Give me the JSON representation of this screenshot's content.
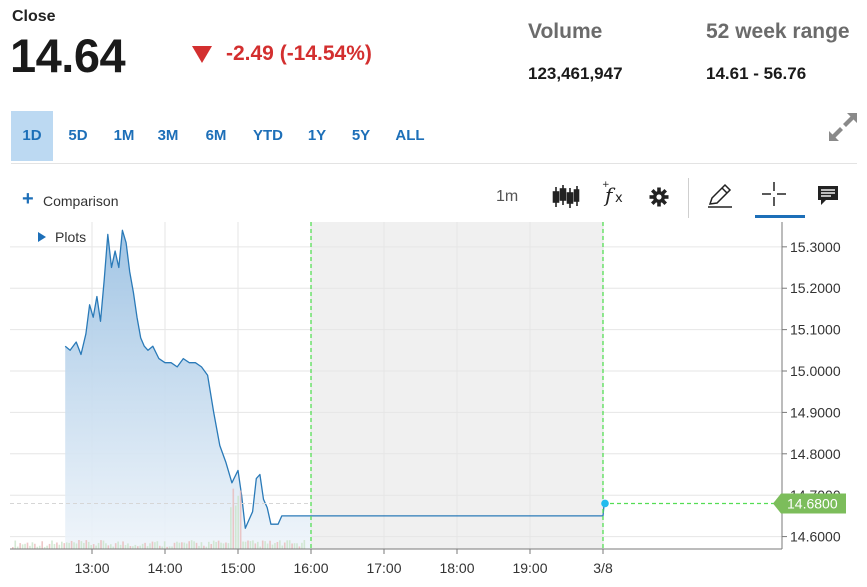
{
  "quote": {
    "close_label": "Close",
    "price": "14.64",
    "change": "-2.49 (-14.54%)",
    "volume_label": "Volume",
    "volume_value": "123,461,947",
    "range_label": "52 week range",
    "range_value": "14.61 - 56.76",
    "down_color": "#d32f2f"
  },
  "ranges": [
    {
      "label": "1D",
      "active": true
    },
    {
      "label": "5D",
      "active": false
    },
    {
      "label": "1M",
      "active": false
    },
    {
      "label": "3M",
      "active": false
    },
    {
      "label": "6M",
      "active": false
    },
    {
      "label": "YTD",
      "active": false
    },
    {
      "label": "1Y",
      "active": false
    },
    {
      "label": "5Y",
      "active": false
    },
    {
      "label": "ALL",
      "active": false
    }
  ],
  "toolbar": {
    "comparison_label": "Comparison",
    "interval": "1m",
    "icons": [
      "expand-icon",
      "plus-icon",
      "candlestick-icon",
      "fx-icon",
      "gear-icon",
      "pencil-icon",
      "crosshair-icon",
      "comment-icon"
    ],
    "active_tool": "crosshair-icon"
  },
  "plots_label": "Plots",
  "chart_data": {
    "type": "area",
    "title": "",
    "xlabel": "",
    "ylabel": "",
    "x_ticks": [
      "13:00",
      "14:00",
      "15:00",
      "16:00",
      "17:00",
      "18:00",
      "19:00",
      "3/8"
    ],
    "y_ticks": [
      "15.3000",
      "15.2000",
      "15.1000",
      "15.0000",
      "14.9000",
      "14.8000",
      "14.7000",
      "14.6000"
    ],
    "ylim": [
      14.57,
      15.36
    ],
    "current_price_label": "14.6800",
    "current_price": 14.68,
    "after_hours_shaded": [
      "16:00",
      "3/8"
    ],
    "grid": true,
    "colors": {
      "line": "#2a7ab8",
      "fill_top": "#9dc2e3",
      "fill_bottom": "#eef4fa",
      "shade": "#f0f0f0",
      "marker": "#22bbee",
      "dash": "#55dd55",
      "label_bg": "#7cbd5b"
    },
    "series": [
      {
        "x": [
          "12:38",
          "12:42",
          "12:47",
          "12:51",
          "12:55",
          "12:58",
          "13:01",
          "13:04",
          "13:07",
          "13:10",
          "13:13",
          "13:16",
          "13:19",
          "13:22",
          "13:25",
          "13:28",
          "13:31",
          "13:34",
          "13:37",
          "13:40",
          "13:43",
          "13:46",
          "13:50",
          "13:55",
          "14:00",
          "14:05",
          "14:10",
          "14:15",
          "14:20",
          "14:25",
          "14:30",
          "14:35",
          "14:40",
          "14:45",
          "14:50",
          "14:55",
          "15:00",
          "15:03",
          "15:06",
          "15:09",
          "15:12",
          "15:15",
          "15:18",
          "15:21",
          "15:24",
          "15:27",
          "15:30",
          "15:33",
          "15:36",
          "15:39",
          "15:42",
          "15:45",
          "15:48",
          "15:51",
          "15:54",
          "15:57",
          "16:00",
          "16:05",
          "16:15",
          "17:00",
          "18:00",
          "19:00",
          "20:00",
          "20:01"
        ],
        "values": [
          15.06,
          15.05,
          15.07,
          15.04,
          15.09,
          15.16,
          15.13,
          15.18,
          15.12,
          15.22,
          15.33,
          15.25,
          15.29,
          15.25,
          15.34,
          15.31,
          15.24,
          15.19,
          15.13,
          15.08,
          15.06,
          15.05,
          15.06,
          15.03,
          15.02,
          15.02,
          15.01,
          15.03,
          15.02,
          15.02,
          15.01,
          14.99,
          14.9,
          14.82,
          14.78,
          14.73,
          14.76,
          14.7,
          14.62,
          14.64,
          14.66,
          14.74,
          14.75,
          14.69,
          14.67,
          14.63,
          14.63,
          14.63,
          14.65,
          14.65,
          14.65,
          14.65,
          14.65,
          14.65,
          14.65,
          14.65,
          14.65,
          14.65,
          14.65,
          14.65,
          14.65,
          14.65,
          14.65,
          14.68
        ]
      }
    ]
  }
}
